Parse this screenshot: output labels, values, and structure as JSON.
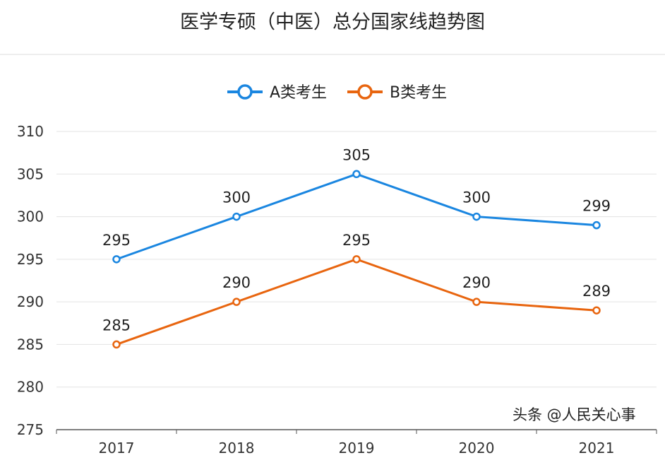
{
  "chart_data": {
    "type": "line",
    "title": "医学专硕（中医）总分国家线趋势图",
    "categories": [
      "2017",
      "2018",
      "2019",
      "2020",
      "2021"
    ],
    "series": [
      {
        "name": "A类考生",
        "values": [
          295,
          300,
          305,
          300,
          299
        ],
        "color": "#1a86e0"
      },
      {
        "name": "B类考生",
        "values": [
          285,
          290,
          295,
          290,
          289
        ],
        "color": "#e8650f"
      }
    ],
    "ylim": [
      275,
      310
    ],
    "yticks": [
      275,
      280,
      285,
      290,
      295,
      300,
      305,
      310
    ],
    "grid": true,
    "legend": "top-center",
    "data_labels": true
  },
  "watermark": "头条 @人民关心事"
}
